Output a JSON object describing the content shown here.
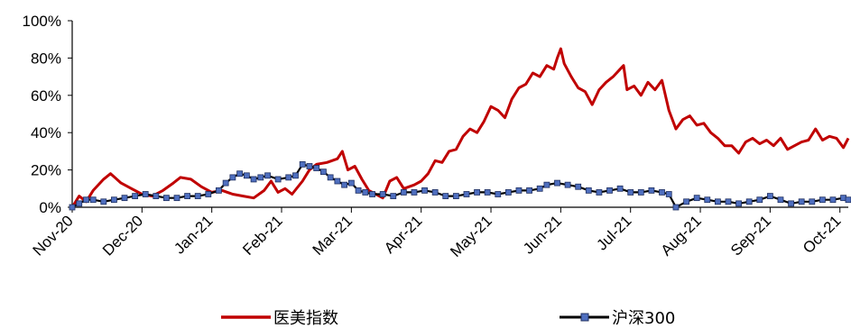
{
  "chart_data": {
    "type": "line",
    "title": "",
    "xlabel": "",
    "ylabel": "",
    "ylim": [
      0,
      100
    ],
    "y_ticks": [
      "0%",
      "20%",
      "40%",
      "60%",
      "80%",
      "100%"
    ],
    "x_ticks": [
      "Nov-20",
      "Dec-20",
      "Jan-21",
      "Feb-21",
      "Mar-21",
      "Apr-21",
      "May-21",
      "Jun-21",
      "Jul-21",
      "Aug-21",
      "Sep-21",
      "Oct-21"
    ],
    "grid": false,
    "legend_position": "bottom",
    "series": [
      {
        "name": "医美指数",
        "color": "#c00000",
        "marker": "none",
        "points": [
          [
            0,
            0
          ],
          [
            0.1,
            6
          ],
          [
            0.2,
            3
          ],
          [
            0.3,
            9
          ],
          [
            0.45,
            15
          ],
          [
            0.55,
            18
          ],
          [
            0.7,
            13
          ],
          [
            0.85,
            10
          ],
          [
            1.0,
            7
          ],
          [
            1.15,
            6
          ],
          [
            1.3,
            9
          ],
          [
            1.45,
            13
          ],
          [
            1.55,
            16
          ],
          [
            1.7,
            15
          ],
          [
            1.85,
            11
          ],
          [
            2.0,
            8
          ],
          [
            2.15,
            9
          ],
          [
            2.3,
            7
          ],
          [
            2.45,
            6
          ],
          [
            2.6,
            5
          ],
          [
            2.75,
            9
          ],
          [
            2.85,
            14
          ],
          [
            2.95,
            8
          ],
          [
            3.05,
            10
          ],
          [
            3.15,
            7
          ],
          [
            3.3,
            14
          ],
          [
            3.4,
            20
          ],
          [
            3.5,
            23
          ],
          [
            3.65,
            24
          ],
          [
            3.8,
            26
          ],
          [
            3.87,
            30
          ],
          [
            3.95,
            20
          ],
          [
            4.05,
            22
          ],
          [
            4.15,
            15
          ],
          [
            4.25,
            9
          ],
          [
            4.35,
            7
          ],
          [
            4.45,
            5
          ],
          [
            4.55,
            14
          ],
          [
            4.65,
            16
          ],
          [
            4.75,
            10
          ],
          [
            4.9,
            12
          ],
          [
            5.0,
            14
          ],
          [
            5.1,
            18
          ],
          [
            5.2,
            25
          ],
          [
            5.3,
            24
          ],
          [
            5.4,
            30
          ],
          [
            5.5,
            31
          ],
          [
            5.6,
            38
          ],
          [
            5.7,
            42
          ],
          [
            5.8,
            40
          ],
          [
            5.9,
            46
          ],
          [
            6.0,
            54
          ],
          [
            6.1,
            52
          ],
          [
            6.2,
            48
          ],
          [
            6.3,
            58
          ],
          [
            6.4,
            64
          ],
          [
            6.5,
            66
          ],
          [
            6.6,
            72
          ],
          [
            6.7,
            70
          ],
          [
            6.8,
            76
          ],
          [
            6.9,
            74
          ],
          [
            6.95,
            80
          ],
          [
            7.0,
            85
          ],
          [
            7.05,
            77
          ],
          [
            7.15,
            70
          ],
          [
            7.25,
            64
          ],
          [
            7.35,
            62
          ],
          [
            7.45,
            55
          ],
          [
            7.55,
            63
          ],
          [
            7.65,
            67
          ],
          [
            7.75,
            70
          ],
          [
            7.85,
            74
          ],
          [
            7.9,
            76
          ],
          [
            7.95,
            63
          ],
          [
            8.05,
            65
          ],
          [
            8.15,
            60
          ],
          [
            8.25,
            67
          ],
          [
            8.35,
            63
          ],
          [
            8.45,
            68
          ],
          [
            8.55,
            52
          ],
          [
            8.65,
            42
          ],
          [
            8.75,
            47
          ],
          [
            8.85,
            49
          ],
          [
            8.95,
            44
          ],
          [
            9.05,
            45
          ],
          [
            9.15,
            40
          ],
          [
            9.25,
            37
          ],
          [
            9.35,
            33
          ],
          [
            9.45,
            33
          ],
          [
            9.55,
            29
          ],
          [
            9.65,
            35
          ],
          [
            9.75,
            37
          ],
          [
            9.85,
            34
          ],
          [
            9.95,
            36
          ],
          [
            10.05,
            33
          ],
          [
            10.15,
            37
          ],
          [
            10.25,
            31
          ],
          [
            10.35,
            33
          ],
          [
            10.45,
            35
          ],
          [
            10.55,
            36
          ],
          [
            10.65,
            42
          ],
          [
            10.75,
            36
          ],
          [
            10.85,
            38
          ],
          [
            10.95,
            37
          ],
          [
            11.05,
            32
          ],
          [
            11.12,
            37
          ]
        ]
      },
      {
        "name": "沪深300",
        "color": "#000000",
        "marker": "square",
        "marker_color": "#4f6fbf",
        "points": [
          [
            0,
            0
          ],
          [
            0.1,
            2
          ],
          [
            0.2,
            4
          ],
          [
            0.3,
            4
          ],
          [
            0.45,
            3
          ],
          [
            0.6,
            4
          ],
          [
            0.75,
            5
          ],
          [
            0.9,
            6
          ],
          [
            1.05,
            7
          ],
          [
            1.2,
            6
          ],
          [
            1.35,
            5
          ],
          [
            1.5,
            5
          ],
          [
            1.65,
            6
          ],
          [
            1.8,
            6
          ],
          [
            1.95,
            7
          ],
          [
            2.1,
            9
          ],
          [
            2.2,
            13
          ],
          [
            2.3,
            16
          ],
          [
            2.4,
            18
          ],
          [
            2.5,
            17
          ],
          [
            2.6,
            15
          ],
          [
            2.7,
            16
          ],
          [
            2.8,
            17
          ],
          [
            2.95,
            15
          ],
          [
            3.1,
            16
          ],
          [
            3.2,
            17
          ],
          [
            3.3,
            23
          ],
          [
            3.4,
            22
          ],
          [
            3.5,
            21
          ],
          [
            3.6,
            19
          ],
          [
            3.7,
            16
          ],
          [
            3.8,
            14
          ],
          [
            3.9,
            12
          ],
          [
            4.0,
            13
          ],
          [
            4.1,
            9
          ],
          [
            4.2,
            8
          ],
          [
            4.3,
            7
          ],
          [
            4.45,
            7
          ],
          [
            4.6,
            6
          ],
          [
            4.75,
            8
          ],
          [
            4.9,
            8
          ],
          [
            5.05,
            9
          ],
          [
            5.2,
            8
          ],
          [
            5.35,
            6
          ],
          [
            5.5,
            6
          ],
          [
            5.65,
            7
          ],
          [
            5.8,
            8
          ],
          [
            5.95,
            8
          ],
          [
            6.1,
            7
          ],
          [
            6.25,
            8
          ],
          [
            6.4,
            9
          ],
          [
            6.55,
            9
          ],
          [
            6.7,
            10
          ],
          [
            6.8,
            12
          ],
          [
            6.95,
            13
          ],
          [
            7.1,
            12
          ],
          [
            7.25,
            11
          ],
          [
            7.4,
            9
          ],
          [
            7.55,
            8
          ],
          [
            7.7,
            9
          ],
          [
            7.85,
            10
          ],
          [
            8.0,
            8
          ],
          [
            8.15,
            8
          ],
          [
            8.3,
            9
          ],
          [
            8.45,
            8
          ],
          [
            8.55,
            7
          ],
          [
            8.65,
            0
          ],
          [
            8.8,
            3
          ],
          [
            8.95,
            5
          ],
          [
            9.1,
            4
          ],
          [
            9.25,
            3
          ],
          [
            9.4,
            3
          ],
          [
            9.55,
            2
          ],
          [
            9.7,
            3
          ],
          [
            9.85,
            4
          ],
          [
            10.0,
            6
          ],
          [
            10.15,
            4
          ],
          [
            10.3,
            2
          ],
          [
            10.45,
            3
          ],
          [
            10.6,
            3
          ],
          [
            10.75,
            4
          ],
          [
            10.9,
            4
          ],
          [
            11.05,
            5
          ],
          [
            11.12,
            4
          ]
        ]
      }
    ]
  }
}
